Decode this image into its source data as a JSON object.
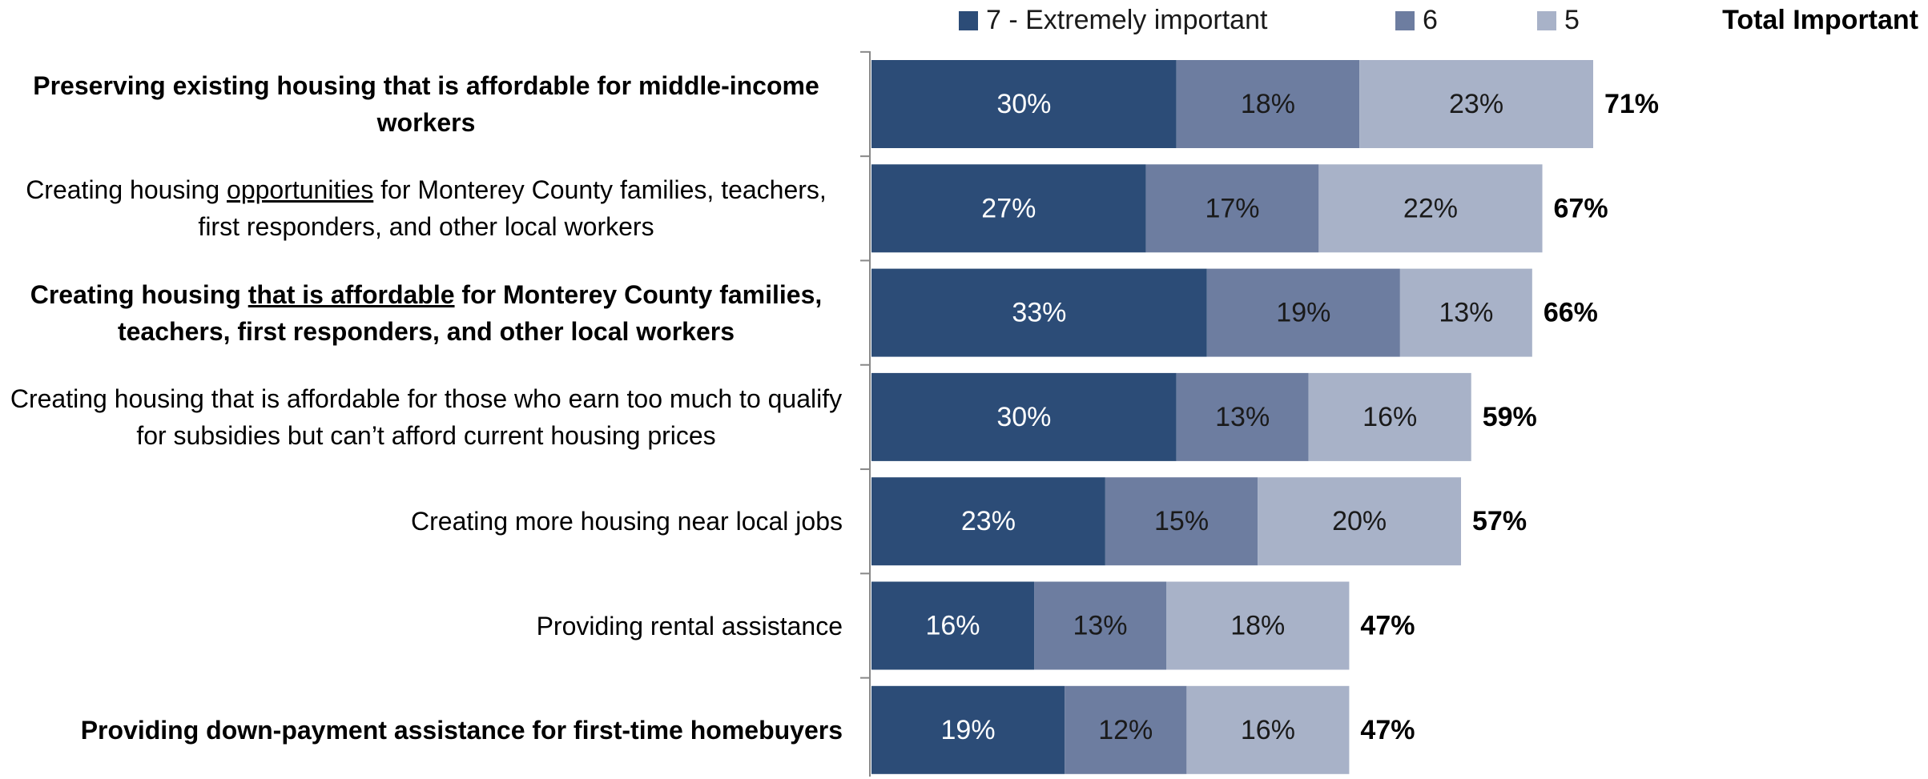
{
  "chart_data": {
    "type": "stacked_bar_horizontal",
    "categories": [
      "Preserving existing housing that is affordable for middle-income workers",
      "Creating housing opportunities for Monterey County families, teachers, first responders, and other local workers",
      "Creating housing that is affordable for Monterey County families, teachers, first responders, and other local workers",
      "Creating housing that is affordable for those who earn too much to qualify for subsidies but can’t afford current housing prices",
      "Creating more housing near local jobs",
      "Providing rental assistance",
      "Providing down-payment assistance for first-time homebuyers"
    ],
    "bold": [
      true,
      false,
      true,
      false,
      false,
      false,
      true
    ],
    "underlined": [
      {
        "category": 1,
        "text": "opportunities"
      },
      {
        "category": 2,
        "text": "that is affordable"
      }
    ],
    "series": [
      {
        "name": "7 - Extremely important",
        "color": "#2c4c77",
        "label_color": "#ffffff",
        "values": [
          30,
          27,
          33,
          30,
          23,
          16,
          19
        ],
        "value_labels": [
          "30%",
          "27%",
          "33%",
          "30%",
          "23%",
          "16%",
          "19%"
        ]
      },
      {
        "name": "6",
        "color": "#6d7da0",
        "label_color": "#1a1a1a",
        "values": [
          18,
          17,
          19,
          13,
          15,
          13,
          12
        ],
        "value_labels": [
          "18%",
          "17%",
          "19%",
          "13%",
          "15%",
          "13%",
          "12%"
        ]
      },
      {
        "name": "5",
        "color": "#a8b2c8",
        "label_color": "#1a1a1a",
        "values": [
          23,
          22,
          13,
          16,
          20,
          18,
          16
        ],
        "value_labels": [
          "23%",
          "22%",
          "13%",
          "16%",
          "20%",
          "18%",
          "16%"
        ]
      }
    ],
    "totals_title": "Total Important",
    "totals": [
      71,
      67,
      66,
      59,
      57,
      47,
      47
    ],
    "total_labels": [
      "71%",
      "67%",
      "66%",
      "59%",
      "57%",
      "47%",
      "47%"
    ],
    "legend": "top"
  }
}
